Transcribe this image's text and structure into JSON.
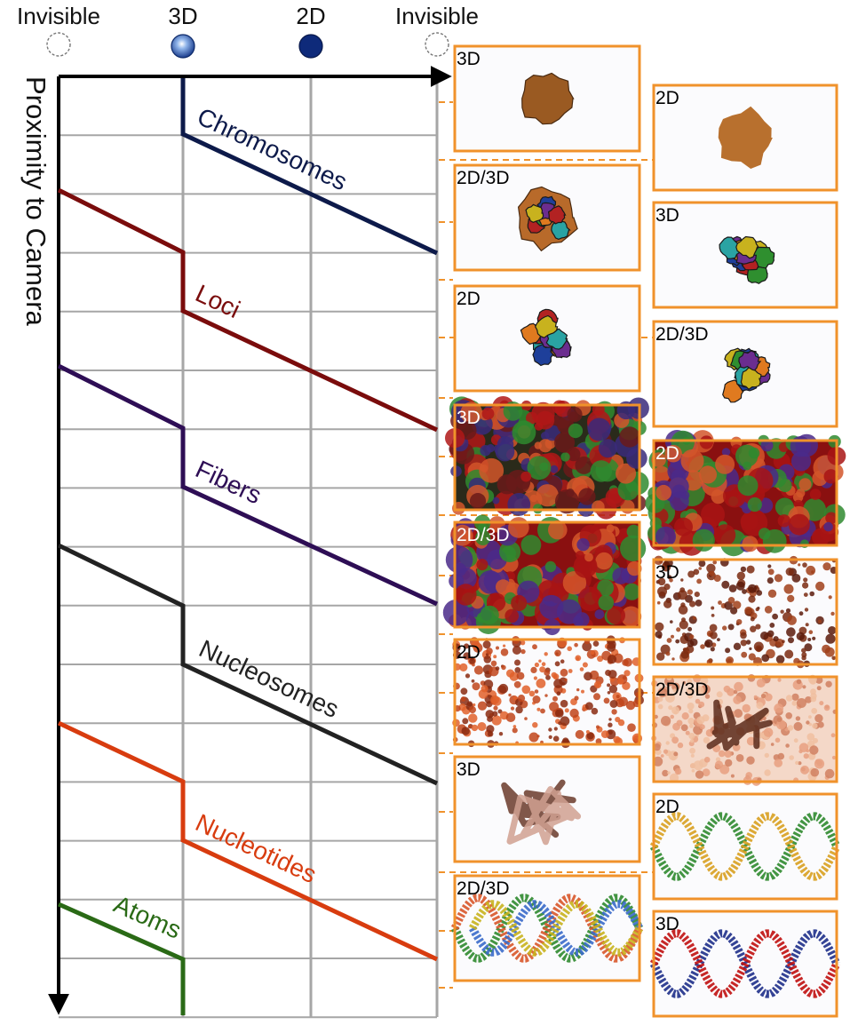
{
  "header": {
    "columns": [
      {
        "label": "Invisible",
        "marker": "dashed-circle"
      },
      {
        "label": "3D",
        "marker": "shaded-sphere"
      },
      {
        "label": "2D",
        "marker": "flat-disc"
      },
      {
        "label": "Invisible",
        "marker": "dashed-circle"
      }
    ]
  },
  "axis": {
    "y_title": "Proximity to Camera"
  },
  "levels": [
    {
      "name": "Chromosomes",
      "color": "#0d1a4a"
    },
    {
      "name": "Loci",
      "color": "#7a0c0c"
    },
    {
      "name": "Fibers",
      "color": "#2e0e55"
    },
    {
      "name": "Nucleosomes",
      "color": "#222222"
    },
    {
      "name": "Nucleotides",
      "color": "#d83c0f"
    },
    {
      "name": "Atoms",
      "color": "#2a6a16"
    }
  ],
  "thumbnails": [
    {
      "label": "3D",
      "content": "chromosome-blob"
    },
    {
      "label": "2D",
      "content": "chromosome-blob-flat"
    },
    {
      "label": "2D/3D",
      "content": "chromosome-blob-mixed"
    },
    {
      "label": "3D",
      "content": "loci-cluster"
    },
    {
      "label": "2D",
      "content": "loci-cluster-flat"
    },
    {
      "label": "2D/3D",
      "content": "loci-cluster-mixed"
    },
    {
      "label": "3D",
      "content": "fibers-dense"
    },
    {
      "label": "2D",
      "content": "fibers-dense-flat"
    },
    {
      "label": "2D/3D",
      "content": "fibers-dense-mixed"
    },
    {
      "label": "3D",
      "content": "nucleosome-chain"
    },
    {
      "label": "2D",
      "content": "nucleosome-field"
    },
    {
      "label": "2D/3D",
      "content": "nucleosome-field-mixed"
    },
    {
      "label": "3D",
      "content": "nucleotide-strand"
    },
    {
      "label": "2D",
      "content": "dna-helix-flat"
    },
    {
      "label": "2D/3D",
      "content": "dna-helix-mixed"
    },
    {
      "label": "3D",
      "content": "atoms-helix"
    }
  ],
  "colors": {
    "grid": "#a6a6a6",
    "frame": "#f0922b",
    "axis": "#000000"
  }
}
